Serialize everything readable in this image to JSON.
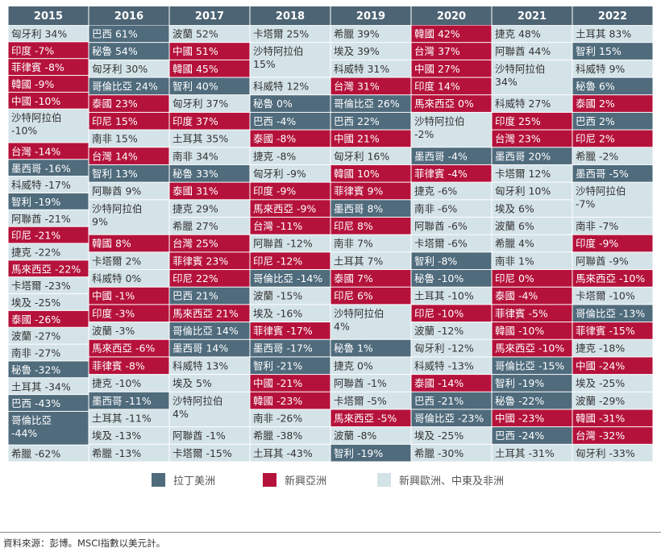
{
  "chart_data": {
    "type": "table",
    "colors": {
      "header_bg": "#4d6474",
      "latin_america": "#4f6b7c",
      "emerging_asia": "#b5123b",
      "emea": "#d4e3e8",
      "text_dark": "#333333",
      "text_light": "#ffffff"
    },
    "legend": [
      {
        "key": "latin_america",
        "label": "拉丁美洲"
      },
      {
        "key": "emerging_asia",
        "label": "新興亞洲"
      },
      {
        "key": "emea",
        "label": "新興歐洲、中東及非洲"
      }
    ],
    "source": "資料來源：彭博。MSCI指數以美元計。",
    "columns": [
      {
        "year": "2015",
        "entries": [
          {
            "label": "匈牙利 34%",
            "region": "emea"
          },
          {
            "label": "印度 -7%",
            "region": "emerging_asia"
          },
          {
            "label": "菲律賓 -8%",
            "region": "emerging_asia"
          },
          {
            "label": "韓國 -9%",
            "region": "emerging_asia"
          },
          {
            "label": "中國 -10%",
            "region": "emerging_asia"
          },
          {
            "label": "沙特阿拉伯\n-10%",
            "region": "emea"
          },
          {
            "label": "台灣 -14%",
            "region": "emerging_asia"
          },
          {
            "label": "墨西哥 -16%",
            "region": "latin_america"
          },
          {
            "label": "科威特 -17%",
            "region": "emea"
          },
          {
            "label": "智利 -19%",
            "region": "latin_america"
          },
          {
            "label": "阿聯酋 -21%",
            "region": "emea"
          },
          {
            "label": "印尼 -21%",
            "region": "emerging_asia"
          },
          {
            "label": "捷克 -22%",
            "region": "emea"
          },
          {
            "label": "馬來西亞 -22%",
            "region": "emerging_asia"
          },
          {
            "label": "卡塔爾 -23%",
            "region": "emea"
          },
          {
            "label": "埃及 -25%",
            "region": "emea"
          },
          {
            "label": "泰國 -26%",
            "region": "emerging_asia"
          },
          {
            "label": "波蘭 -27%",
            "region": "emea"
          },
          {
            "label": "南非 -27%",
            "region": "emea"
          },
          {
            "label": "秘魯 -32%",
            "region": "latin_america"
          },
          {
            "label": "土耳其 -34%",
            "region": "emea"
          },
          {
            "label": "巴西 -43%",
            "region": "latin_america"
          },
          {
            "label": "哥倫比亞\n-44%",
            "region": "latin_america"
          },
          {
            "label": "希臘 -62%",
            "region": "emea"
          }
        ]
      },
      {
        "year": "2016",
        "entries": [
          {
            "label": "巴西 61%",
            "region": "latin_america"
          },
          {
            "label": "秘魯 54%",
            "region": "latin_america"
          },
          {
            "label": "匈牙利 30%",
            "region": "emea"
          },
          {
            "label": "哥倫比亞 24%",
            "region": "latin_america"
          },
          {
            "label": "泰國 23%",
            "region": "emerging_asia"
          },
          {
            "label": "印尼 15%",
            "region": "emerging_asia"
          },
          {
            "label": "南非 15%",
            "region": "emea"
          },
          {
            "label": "台灣 14%",
            "region": "emerging_asia"
          },
          {
            "label": "智利 13%",
            "region": "latin_america"
          },
          {
            "label": "阿聯酋 9%",
            "region": "emea"
          },
          {
            "label": "沙特阿拉伯\n9%",
            "region": "emea"
          },
          {
            "label": "韓國 8%",
            "region": "emerging_asia"
          },
          {
            "label": "卡塔爾 2%",
            "region": "emea"
          },
          {
            "label": "科威特 0%",
            "region": "emea"
          },
          {
            "label": "中國 -1%",
            "region": "emerging_asia"
          },
          {
            "label": "印度 -3%",
            "region": "emerging_asia"
          },
          {
            "label": "波蘭 -3%",
            "region": "emea"
          },
          {
            "label": "馬來西亞 -6%",
            "region": "emerging_asia"
          },
          {
            "label": "菲律賓 -8%",
            "region": "emerging_asia"
          },
          {
            "label": "捷克 -10%",
            "region": "emea"
          },
          {
            "label": "墨西哥 -11%",
            "region": "latin_america"
          },
          {
            "label": "土耳其 -11%",
            "region": "emea"
          },
          {
            "label": "埃及 -13%",
            "region": "emea"
          },
          {
            "label": "希臘 -13%",
            "region": "emea"
          }
        ]
      },
      {
        "year": "2017",
        "entries": [
          {
            "label": "波蘭 52%",
            "region": "emea"
          },
          {
            "label": "中國 51%",
            "region": "emerging_asia"
          },
          {
            "label": "韓國 45%",
            "region": "emerging_asia"
          },
          {
            "label": "智利 40%",
            "region": "latin_america"
          },
          {
            "label": "匈牙利 37%",
            "region": "emea"
          },
          {
            "label": "印度 37%",
            "region": "emerging_asia"
          },
          {
            "label": "土耳其 35%",
            "region": "emea"
          },
          {
            "label": "南非 34%",
            "region": "emea"
          },
          {
            "label": "秘魯 33%",
            "region": "latin_america"
          },
          {
            "label": "泰國 31%",
            "region": "emerging_asia"
          },
          {
            "label": "捷克 29%",
            "region": "emea"
          },
          {
            "label": "希臘 27%",
            "region": "emea"
          },
          {
            "label": "台灣 25%",
            "region": "emerging_asia"
          },
          {
            "label": "菲律賓 23%",
            "region": "emerging_asia"
          },
          {
            "label": "印尼 22%",
            "region": "emerging_asia"
          },
          {
            "label": "巴西 21%",
            "region": "latin_america"
          },
          {
            "label": "馬來西亞 21%",
            "region": "emerging_asia"
          },
          {
            "label": "哥倫比亞 14%",
            "region": "latin_america"
          },
          {
            "label": "墨西哥 14%",
            "region": "latin_america"
          },
          {
            "label": "科威特 13%",
            "region": "emea"
          },
          {
            "label": "埃及 5%",
            "region": "emea"
          },
          {
            "label": "沙特阿拉伯\n4%",
            "region": "emea"
          },
          {
            "label": "阿聯酋 -1%",
            "region": "emea"
          },
          {
            "label": "卡塔爾 -15%",
            "region": "emea"
          }
        ]
      },
      {
        "year": "2018",
        "entries": [
          {
            "label": "卡塔爾 25%",
            "region": "emea"
          },
          {
            "label": "沙特阿拉伯\n15%",
            "region": "emea"
          },
          {
            "label": "科威特 12%",
            "region": "emea"
          },
          {
            "label": "秘魯 0%",
            "region": "latin_america"
          },
          {
            "label": "巴西 -4%",
            "region": "latin_america"
          },
          {
            "label": "泰國 -8%",
            "region": "emerging_asia"
          },
          {
            "label": "捷克 -8%",
            "region": "emea"
          },
          {
            "label": "匈牙利 -9%",
            "region": "emea"
          },
          {
            "label": "印度 -9%",
            "region": "emerging_asia"
          },
          {
            "label": "馬來西亞 -9%",
            "region": "emerging_asia"
          },
          {
            "label": "台灣 -11%",
            "region": "emerging_asia"
          },
          {
            "label": "阿聯酋 -12%",
            "region": "emea"
          },
          {
            "label": "印尼 -12%",
            "region": "emerging_asia"
          },
          {
            "label": "哥倫比亞 -14%",
            "region": "latin_america"
          },
          {
            "label": "波蘭 -15%",
            "region": "emea"
          },
          {
            "label": "埃及 -16%",
            "region": "emea"
          },
          {
            "label": "菲律賓 -17%",
            "region": "emerging_asia"
          },
          {
            "label": "墨西哥 -17%",
            "region": "latin_america"
          },
          {
            "label": "智利 -21%",
            "region": "latin_america"
          },
          {
            "label": "中國 -21%",
            "region": "emerging_asia"
          },
          {
            "label": "韓國 -23%",
            "region": "emerging_asia"
          },
          {
            "label": "南非 -26%",
            "region": "emea"
          },
          {
            "label": "希臘 -38%",
            "region": "emea"
          },
          {
            "label": "土耳其 -43%",
            "region": "emea"
          }
        ]
      },
      {
        "year": "2019",
        "entries": [
          {
            "label": "希臘 39%",
            "region": "emea"
          },
          {
            "label": "埃及 39%",
            "region": "emea"
          },
          {
            "label": "科威特 31%",
            "region": "emea"
          },
          {
            "label": "台灣 31%",
            "region": "emerging_asia"
          },
          {
            "label": "哥倫比亞 26%",
            "region": "latin_america"
          },
          {
            "label": "巴西 22%",
            "region": "latin_america"
          },
          {
            "label": "中國 21%",
            "region": "emerging_asia"
          },
          {
            "label": "匈牙利 16%",
            "region": "emea"
          },
          {
            "label": "韓國 10%",
            "region": "emerging_asia"
          },
          {
            "label": "菲律賓 9%",
            "region": "emerging_asia"
          },
          {
            "label": "墨西哥 8%",
            "region": "latin_america"
          },
          {
            "label": "印尼 8%",
            "region": "emerging_asia"
          },
          {
            "label": "南非 7%",
            "region": "emea"
          },
          {
            "label": "土耳其 7%",
            "region": "emea"
          },
          {
            "label": "泰國 7%",
            "region": "emerging_asia"
          },
          {
            "label": "印尼 6%",
            "region": "emerging_asia"
          },
          {
            "label": "沙特阿拉伯\n4%",
            "region": "emea"
          },
          {
            "label": "秘魯 1%",
            "region": "latin_america"
          },
          {
            "label": "捷克 0%",
            "region": "emea"
          },
          {
            "label": "阿聯酋 -1%",
            "region": "emea"
          },
          {
            "label": "卡塔爾 -5%",
            "region": "emea"
          },
          {
            "label": "馬來西亞 -5%",
            "region": "emerging_asia"
          },
          {
            "label": "波蘭 -8%",
            "region": "emea"
          },
          {
            "label": "智利 -19%",
            "region": "latin_america"
          }
        ]
      },
      {
        "year": "2020",
        "entries": [
          {
            "label": "韓國 42%",
            "region": "emerging_asia"
          },
          {
            "label": "台灣 37%",
            "region": "emerging_asia"
          },
          {
            "label": "中國 27%",
            "region": "emerging_asia"
          },
          {
            "label": "印度 14%",
            "region": "emerging_asia"
          },
          {
            "label": "馬來西亞 0%",
            "region": "emerging_asia"
          },
          {
            "label": "沙特阿拉伯\n-2%",
            "region": "emea"
          },
          {
            "label": "墨西哥 -4%",
            "region": "latin_america"
          },
          {
            "label": "菲律賓 -4%",
            "region": "emerging_asia"
          },
          {
            "label": "捷克 -6%",
            "region": "emea"
          },
          {
            "label": "南非 -6%",
            "region": "emea"
          },
          {
            "label": "阿聯酋 -6%",
            "region": "emea"
          },
          {
            "label": "卡塔爾 -6%",
            "region": "emea"
          },
          {
            "label": "智利 -8%",
            "region": "latin_america"
          },
          {
            "label": "秘魯 -10%",
            "region": "latin_america"
          },
          {
            "label": "土耳其 -10%",
            "region": "emea"
          },
          {
            "label": "印尼 -10%",
            "region": "emerging_asia"
          },
          {
            "label": "波蘭 -12%",
            "region": "emea"
          },
          {
            "label": "匈牙利 -12%",
            "region": "emea"
          },
          {
            "label": "科威特 -13%",
            "region": "emea"
          },
          {
            "label": "泰國 -14%",
            "region": "emerging_asia"
          },
          {
            "label": "巴西 -21%",
            "region": "latin_america"
          },
          {
            "label": "哥倫比亞 -23%",
            "region": "latin_america"
          },
          {
            "label": "埃及 -25%",
            "region": "emea"
          },
          {
            "label": "希臘 -30%",
            "region": "emea"
          }
        ]
      },
      {
        "year": "2021",
        "entries": [
          {
            "label": "捷克 48%",
            "region": "emea"
          },
          {
            "label": "阿聯酋 44%",
            "region": "emea"
          },
          {
            "label": "沙特阿拉伯\n34%",
            "region": "emea"
          },
          {
            "label": "科威特 27%",
            "region": "emea"
          },
          {
            "label": "印度 25%",
            "region": "emerging_asia"
          },
          {
            "label": "台灣 23%",
            "region": "emerging_asia"
          },
          {
            "label": "墨西哥 20%",
            "region": "latin_america"
          },
          {
            "label": "卡塔爾 12%",
            "region": "emea"
          },
          {
            "label": "匈牙利 10%",
            "region": "emea"
          },
          {
            "label": "埃及 6%",
            "region": "emea"
          },
          {
            "label": "波蘭 6%",
            "region": "emea"
          },
          {
            "label": "希臘 4%",
            "region": "emea"
          },
          {
            "label": "南非 1%",
            "region": "emea"
          },
          {
            "label": "印尼 0%",
            "region": "emerging_asia"
          },
          {
            "label": "泰國 -4%",
            "region": "emerging_asia"
          },
          {
            "label": "菲律賓 -5%",
            "region": "emerging_asia"
          },
          {
            "label": "韓國 -10%",
            "region": "emerging_asia"
          },
          {
            "label": "馬來西亞 -10%",
            "region": "emerging_asia"
          },
          {
            "label": "哥倫比亞 -15%",
            "region": "latin_america"
          },
          {
            "label": "智利 -19%",
            "region": "latin_america"
          },
          {
            "label": "秘魯 -22%",
            "region": "latin_america"
          },
          {
            "label": "中國 -23%",
            "region": "emerging_asia"
          },
          {
            "label": "巴西 -24%",
            "region": "latin_america"
          },
          {
            "label": "土耳其 -31%",
            "region": "emea"
          }
        ]
      },
      {
        "year": "2022",
        "entries": [
          {
            "label": "土耳其 83%",
            "region": "emea"
          },
          {
            "label": "智利 15%",
            "region": "latin_america"
          },
          {
            "label": "科威特 9%",
            "region": "emea"
          },
          {
            "label": "秘魯 6%",
            "region": "latin_america"
          },
          {
            "label": "泰國 2%",
            "region": "emerging_asia"
          },
          {
            "label": "巴西 2%",
            "region": "latin_america"
          },
          {
            "label": "印尼 2%",
            "region": "emerging_asia"
          },
          {
            "label": "希臘 -2%",
            "region": "emea"
          },
          {
            "label": "墨西哥 -5%",
            "region": "latin_america"
          },
          {
            "label": "沙特阿拉伯\n-7%",
            "region": "emea"
          },
          {
            "label": "南非 -7%",
            "region": "emea"
          },
          {
            "label": "印度 -9%",
            "region": "emerging_asia"
          },
          {
            "label": "阿聯酋 -9%",
            "region": "emea"
          },
          {
            "label": "馬來西亞 -10%",
            "region": "emerging_asia"
          },
          {
            "label": "卡塔爾 -10%",
            "region": "emea"
          },
          {
            "label": "哥倫比亞 -13%",
            "region": "latin_america"
          },
          {
            "label": "菲律賓 -15%",
            "region": "emerging_asia"
          },
          {
            "label": "捷克 -18%",
            "region": "emea"
          },
          {
            "label": "中國 -24%",
            "region": "emerging_asia"
          },
          {
            "label": "埃及 -25%",
            "region": "emea"
          },
          {
            "label": "波蘭 -29%",
            "region": "emea"
          },
          {
            "label": "韓國 -31%",
            "region": "emerging_asia"
          },
          {
            "label": "台灣 -32%",
            "region": "emerging_asia"
          },
          {
            "label": "匈牙利 -33%",
            "region": "emea"
          }
        ]
      }
    ]
  }
}
